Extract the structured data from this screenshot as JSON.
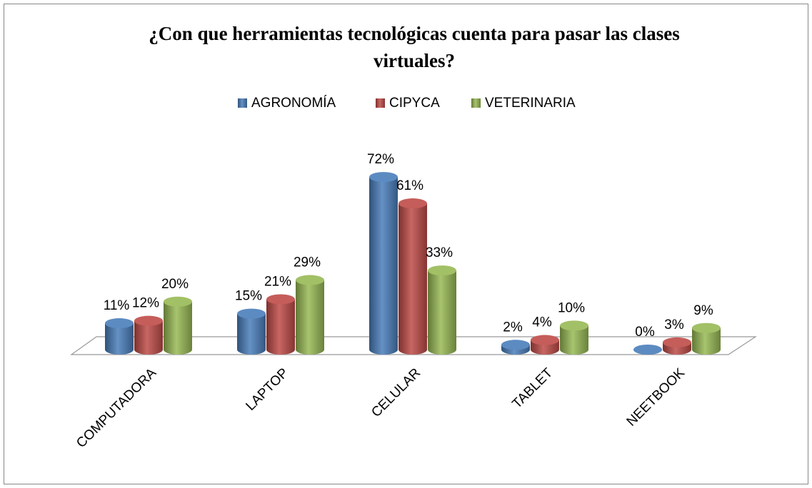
{
  "chart_data": {
    "type": "bar3d",
    "title": "¿Con que herramientas tecnológicas cuenta para pasar las clases virtuales?",
    "categories": [
      "COMPUTADORA",
      "LAPTOP",
      "CELULAR",
      "TABLET",
      "NEETBOOK"
    ],
    "series": [
      {
        "name": "AGRONOMÍA",
        "color": "#4a7ebb",
        "values": [
          11,
          15,
          72,
          2,
          0
        ],
        "value_labels": [
          "11%",
          "15%",
          "72%",
          "2%",
          "0%"
        ]
      },
      {
        "name": "CIPYCA",
        "color": "#be4b48",
        "values": [
          12,
          21,
          61,
          4,
          3
        ],
        "value_labels": [
          "12%",
          "21%",
          "61%",
          "4%",
          "3%"
        ]
      },
      {
        "name": "VETERINARIA",
        "color": "#98b954",
        "values": [
          20,
          29,
          33,
          10,
          9
        ],
        "value_labels": [
          "20%",
          "29%",
          "33%",
          "10%",
          "9%"
        ]
      }
    ],
    "legend": "top"
  }
}
